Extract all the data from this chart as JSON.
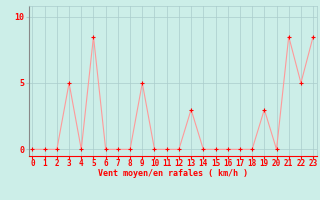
{
  "x": [
    0,
    1,
    2,
    3,
    4,
    5,
    6,
    7,
    8,
    9,
    10,
    11,
    12,
    13,
    14,
    15,
    16,
    17,
    18,
    19,
    20,
    21,
    22,
    23
  ],
  "y": [
    0,
    0,
    0,
    5,
    0,
    8.5,
    0,
    0,
    0,
    5,
    0,
    0,
    0,
    3,
    0,
    0,
    0,
    0,
    0,
    3,
    0,
    8.5,
    5,
    8.5
  ],
  "bg_color": "#cceee8",
  "line_color": "#ff9999",
  "marker_color": "#ff0000",
  "grid_color": "#aacccc",
  "xlabel": "Vent moyen/en rafales ( km/h )",
  "ylabel_ticks": [
    0,
    5,
    10
  ],
  "xlim": [
    -0.3,
    23.3
  ],
  "ylim": [
    -0.5,
    10.8
  ],
  "xlabel_fontsize": 6.0,
  "tick_fontsize": 5.5
}
